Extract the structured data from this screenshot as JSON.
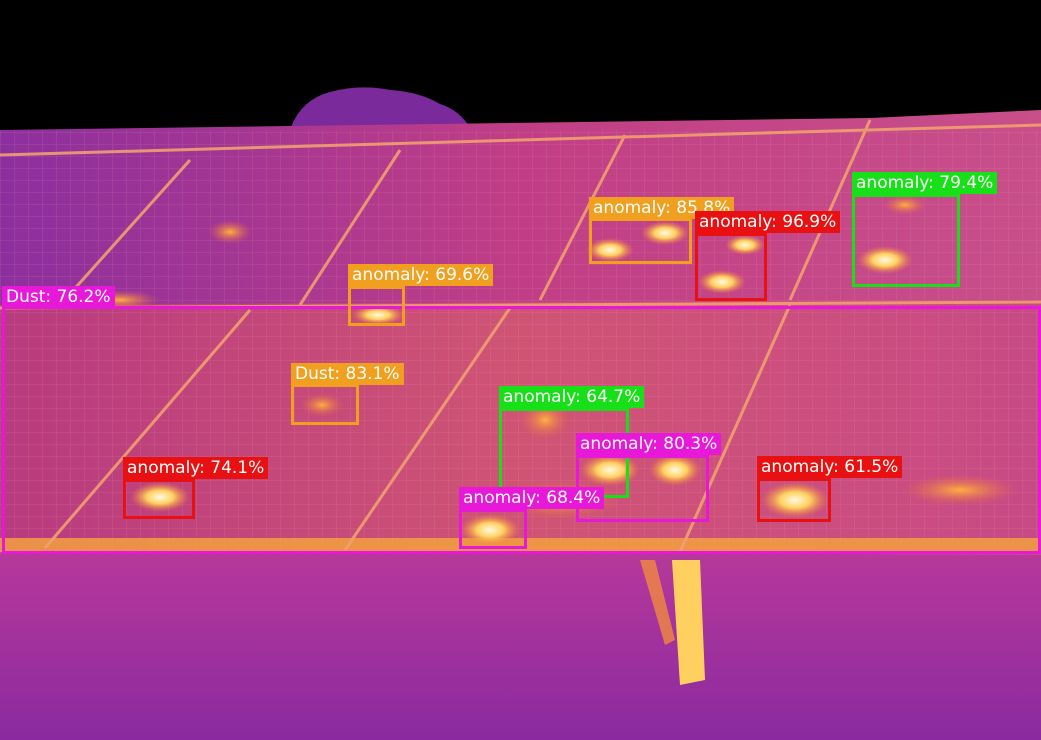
{
  "image": {
    "description_icon": "thermal-solar-panel-scene",
    "colors": {
      "sky": "#000000",
      "panel_base": "#c0387a",
      "panel_warm": "#e8603a",
      "hotspot": "#fff6c8",
      "ground": "#9b2fa6"
    }
  },
  "legend_colors": {
    "red": "#e81010",
    "orange": "#f0a01e",
    "green": "#18e018",
    "magenta": "#e818d8"
  },
  "detections": [
    {
      "id": "det-dust-762",
      "label": "Dust: 76.2%",
      "color": "#e818d8"
    },
    {
      "id": "det-anomaly-696",
      "label": "anomaly: 69.6%",
      "color": "#f0a01e"
    },
    {
      "id": "det-anomaly-858",
      "label": "anomaly: 85.8%",
      "color": "#f0a01e"
    },
    {
      "id": "det-anomaly-969",
      "label": "anomaly: 96.9%",
      "color": "#e81010"
    },
    {
      "id": "det-anomaly-794",
      "label": "anomaly: 79.4%",
      "color": "#18e018"
    },
    {
      "id": "det-dust-831",
      "label": "Dust: 83.1%",
      "color": "#f0a01e"
    },
    {
      "id": "det-anomaly-647",
      "label": "anomaly: 64.7%",
      "color": "#18e018"
    },
    {
      "id": "det-anomaly-803",
      "label": "anomaly: 80.3%",
      "color": "#e818d8"
    },
    {
      "id": "det-anomaly-684",
      "label": "anomaly: 68.4%",
      "color": "#e818d8"
    },
    {
      "id": "det-anomaly-741",
      "label": "anomaly: 74.1%",
      "color": "#e81010"
    },
    {
      "id": "det-anomaly-615",
      "label": "anomaly: 61.5%",
      "color": "#e81010"
    }
  ]
}
